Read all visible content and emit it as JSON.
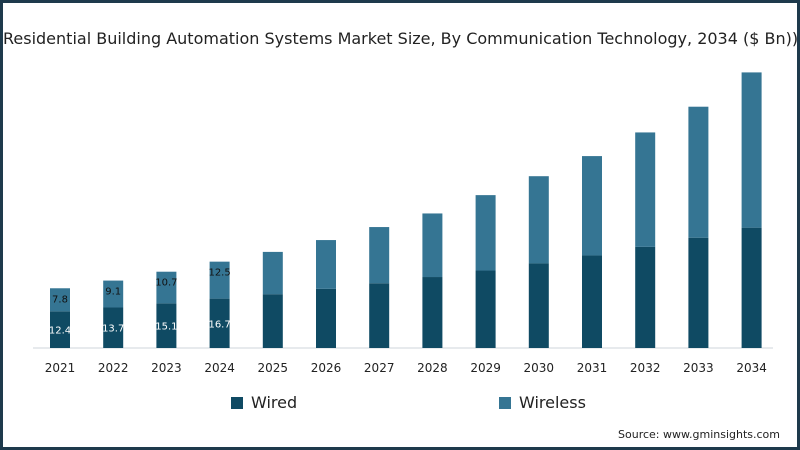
{
  "chart_data": {
    "type": "bar",
    "stacked": true,
    "title": "Residential Building Automation Systems Market Size, By Communication Technology, 2034 ($ Bn))",
    "xlabel": "",
    "ylabel": "",
    "categories": [
      "2021",
      "2022",
      "2023",
      "2024",
      "2025",
      "2026",
      "2027",
      "2028",
      "2029",
      "2030",
      "2031",
      "2032",
      "2033",
      "2034"
    ],
    "series": [
      {
        "name": "Wired",
        "color": "#0f4a63",
        "values": [
          12.4,
          13.7,
          15.1,
          16.7,
          18.2,
          20.0,
          21.9,
          24.0,
          26.2,
          28.6,
          31.3,
          34.2,
          37.3,
          40.7
        ],
        "labels": [
          "12.4",
          "13.7",
          "15.1",
          "16.7",
          "",
          "",
          "",
          "",
          "",
          "",
          "",
          "",
          "",
          ""
        ]
      },
      {
        "name": "Wireless",
        "color": "#357593",
        "values": [
          7.8,
          9.1,
          10.7,
          12.5,
          14.3,
          16.5,
          19.0,
          21.5,
          25.5,
          29.5,
          33.6,
          38.7,
          44.3,
          52.5
        ],
        "labels": [
          "7.8",
          "9.1",
          "10.7",
          "12.5",
          "",
          "",
          "",
          "",
          "",
          "",
          "",
          "",
          "",
          ""
        ]
      }
    ],
    "ylim": [
      0,
      93
    ],
    "grid": false,
    "legend_position": "bottom"
  },
  "source": "Source: www.gminsights.com"
}
